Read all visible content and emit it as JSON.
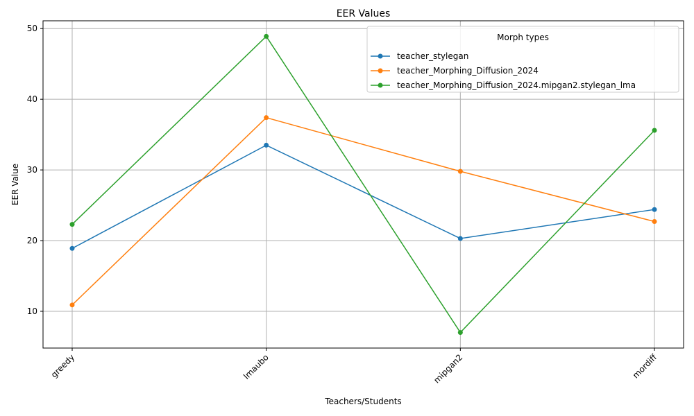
{
  "chart_data": {
    "type": "line",
    "title": "EER Values",
    "xlabel": "Teachers/Students",
    "ylabel": "EER Value",
    "categories": [
      "greedy",
      "lmaubo",
      "mipgan2",
      "mordiff"
    ],
    "ylim": [
      4.8,
      51.1
    ],
    "yticks": [
      10,
      20,
      30,
      40,
      50
    ],
    "grid": true,
    "legend": {
      "title": "Morph types",
      "placement": "top-right"
    },
    "series": [
      {
        "name": "teacher_stylegan",
        "color": "#1f77b4",
        "values": [
          18.9,
          33.5,
          20.3,
          24.4
        ]
      },
      {
        "name": "teacher_Morphing_Diffusion_2024",
        "color": "#ff7f0e",
        "values": [
          10.9,
          37.4,
          29.8,
          22.7
        ]
      },
      {
        "name": "teacher_Morphing_Diffusion_2024.mipgan2.stylegan_lma",
        "color": "#2ca02c",
        "values": [
          22.3,
          48.9,
          7.0,
          35.6
        ]
      }
    ]
  }
}
